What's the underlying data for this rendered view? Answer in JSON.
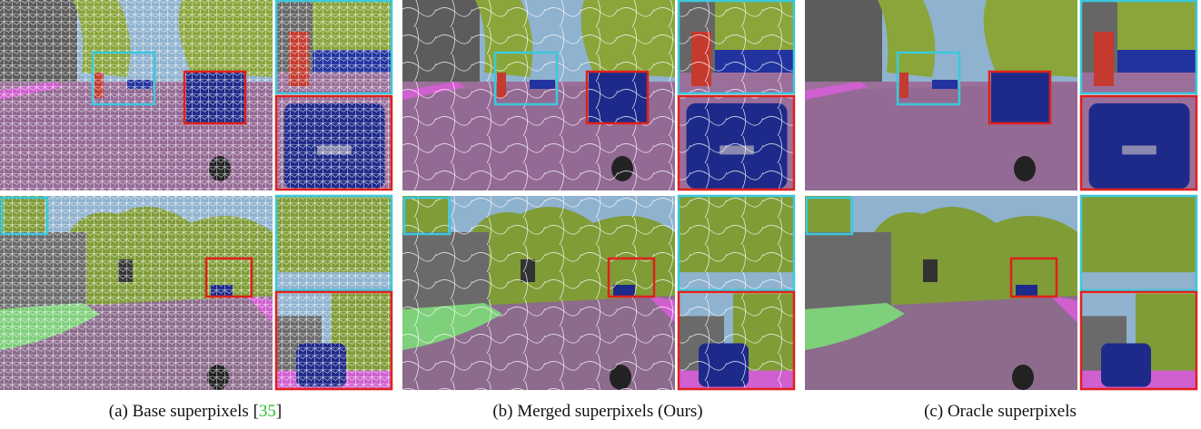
{
  "captions": [
    {
      "text": "(a) Base superpixels [",
      "citation": "35",
      "close": "]"
    },
    {
      "text": "(b) Merged superpixels (Ours)"
    },
    {
      "text": "(c) Oracle superpixels"
    }
  ]
}
